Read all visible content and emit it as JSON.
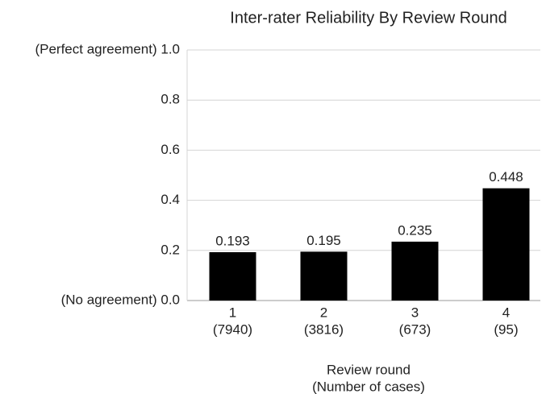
{
  "chart_data": {
    "type": "bar",
    "title": "Inter-rater Reliability By Review Round",
    "categories": [
      "1",
      "2",
      "3",
      "4"
    ],
    "category_sublabels": [
      "(7940)",
      "(3816)",
      "(673)",
      "(95)"
    ],
    "values": [
      0.193,
      0.195,
      0.235,
      0.448
    ],
    "color": "#000000",
    "xlabel": [
      "Review round",
      "(Number of cases)"
    ],
    "ylim": [
      0,
      1
    ],
    "yticks": [
      {
        "value": 0,
        "label": "(No agreement) 0.0"
      },
      0.2,
      0.4,
      0.6,
      0.8,
      {
        "value": 1,
        "label": "(Perfect agreement) 1.0"
      }
    ],
    "grid": true
  }
}
